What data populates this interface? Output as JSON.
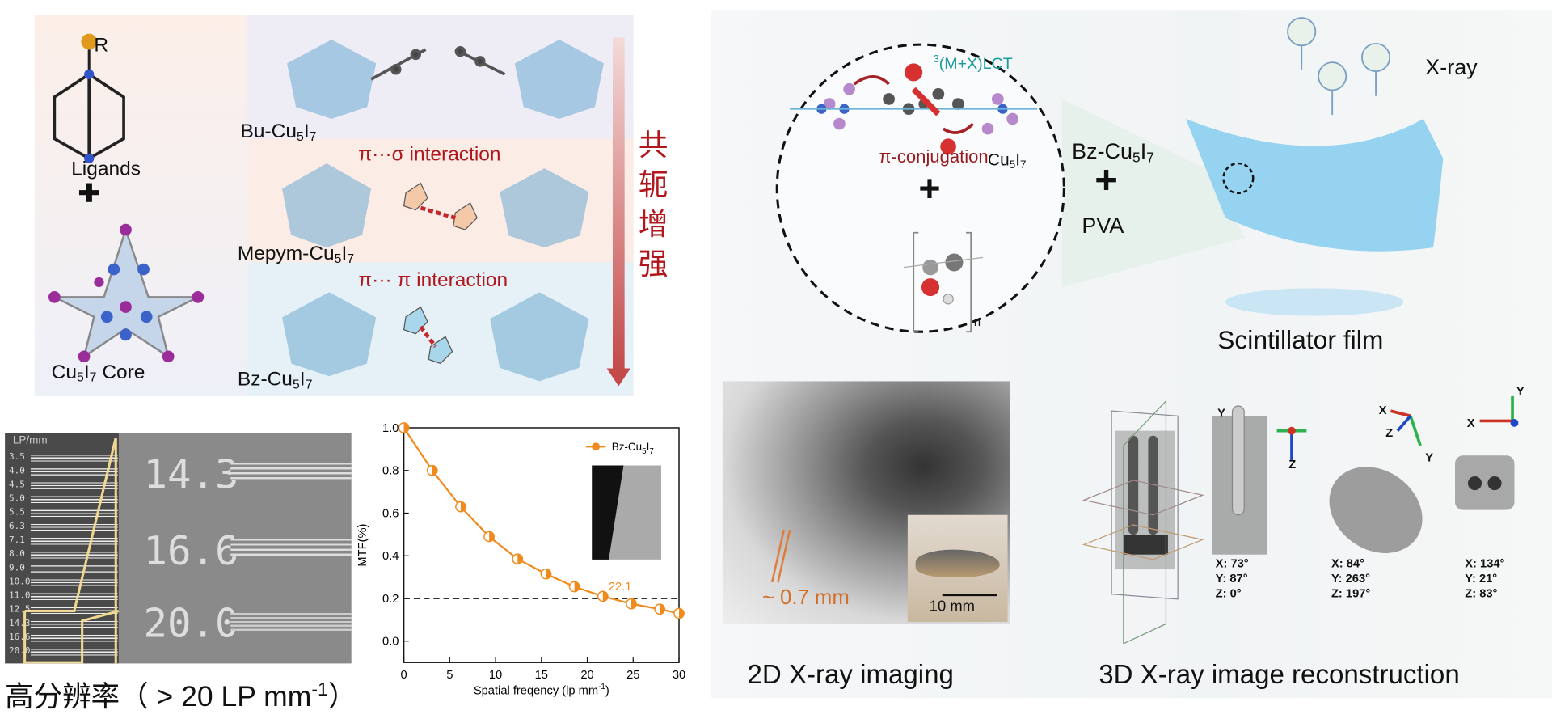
{
  "panel_a": {
    "r_label": "R",
    "ligands_label": "Ligands",
    "plus": "+",
    "core_label": "Cu",
    "core_sub1": "5",
    "core_mid": "I",
    "core_sub2": "7",
    "core_suffix": " Core",
    "rows": [
      {
        "name_prefix": "Bu-Cu",
        "interaction": ""
      },
      {
        "name_prefix": "Mepym-Cu",
        "interaction": "π···σ interaction"
      },
      {
        "name_prefix": "Bz-Cu",
        "interaction": "π··· π interaction"
      }
    ],
    "sub5": "5",
    "i_letter": "I",
    "sub7": "7",
    "trend_label": [
      "共",
      "轭",
      "增",
      "强"
    ],
    "colors": {
      "trend": "#b0161c",
      "row_bu": "#eeedf6",
      "row_mepym": "#fbece6",
      "row_bz": "#e6f1f7"
    }
  },
  "panel_b": {
    "ruler_header": "LP/mm",
    "ruler_ticks": [
      "3.5",
      "4.0",
      "4.5",
      "5.0",
      "5.5",
      "6.3",
      "7.1",
      "8.0",
      "9.0",
      "10.0",
      "11.0",
      "12.5",
      "14.3",
      "16.6",
      "20.0"
    ],
    "zoom_labels": [
      "14.3",
      "16.6",
      "20.0"
    ],
    "caption_main": "高分辨率（ > 20 LP mm",
    "caption_sup": "-1",
    "caption_end": "）"
  },
  "chart_data": {
    "type": "line",
    "xlabel": "Spatial freqency (lp mm",
    "xlabel_sup": "-1",
    "xlabel_end": ")",
    "ylabel": "MTF(%)",
    "xlim": [
      0,
      30
    ],
    "ylim": [
      -0.1,
      1.0
    ],
    "xticks": [
      "0",
      "5",
      "10",
      "15",
      "20",
      "25",
      "30"
    ],
    "yticks": [
      "0.0",
      "0.2",
      "0.4",
      "0.6",
      "0.8",
      "1.0"
    ],
    "series": [
      {
        "name": "Bz-Cu5I7",
        "color": "#f08a1c",
        "x": [
          0,
          3.1,
          6.2,
          9.3,
          12.4,
          15.5,
          18.6,
          21.7,
          24.8,
          27.9,
          30
        ],
        "y": [
          1.0,
          0.8,
          0.63,
          0.49,
          0.385,
          0.315,
          0.255,
          0.21,
          0.175,
          0.15,
          0.13
        ]
      }
    ],
    "legend": {
      "prefix": "Bz-Cu",
      "sub1": "5",
      "mid": "I",
      "sub2": "7",
      "placement": "top-right"
    },
    "threshold": 0.2,
    "annotation": "22.1",
    "annotation_x": 22.1,
    "grid": false
  },
  "panel_c": {
    "lct_sup": "3",
    "lct_label": "(M+X)LCT",
    "pi_conj": "π-conjugation",
    "cu_prefix": "Cu",
    "sub5": "5",
    "i_letter": "I",
    "sub7": "7",
    "plus": "+",
    "n_sub": "n",
    "bz_prefix": "Bz-Cu",
    "pva": "PVA",
    "xray": "X-ray",
    "film_label": "Scintillator film",
    "colors": {
      "lct": "#1a9a9a",
      "film": "#8ccff0"
    }
  },
  "panel_d": {
    "scale_label": "~ 0.7 mm",
    "photo_scale": "10 mm",
    "caption_2d": "2D X-ray imaging",
    "caption_3d": "3D X-ray image reconstruction",
    "views": [
      {
        "angles": "X: 73°\nY: 87°\nZ: 0°",
        "axes": [
          "Y",
          "Z"
        ]
      },
      {
        "angles": "X: 84°\nY: 263°\nZ: 197°",
        "axes": [
          "X",
          "Z",
          "Y"
        ]
      },
      {
        "angles": "X: 134°\nY: 21°\nZ: 83°",
        "axes": [
          "Y",
          "X"
        ]
      }
    ]
  }
}
